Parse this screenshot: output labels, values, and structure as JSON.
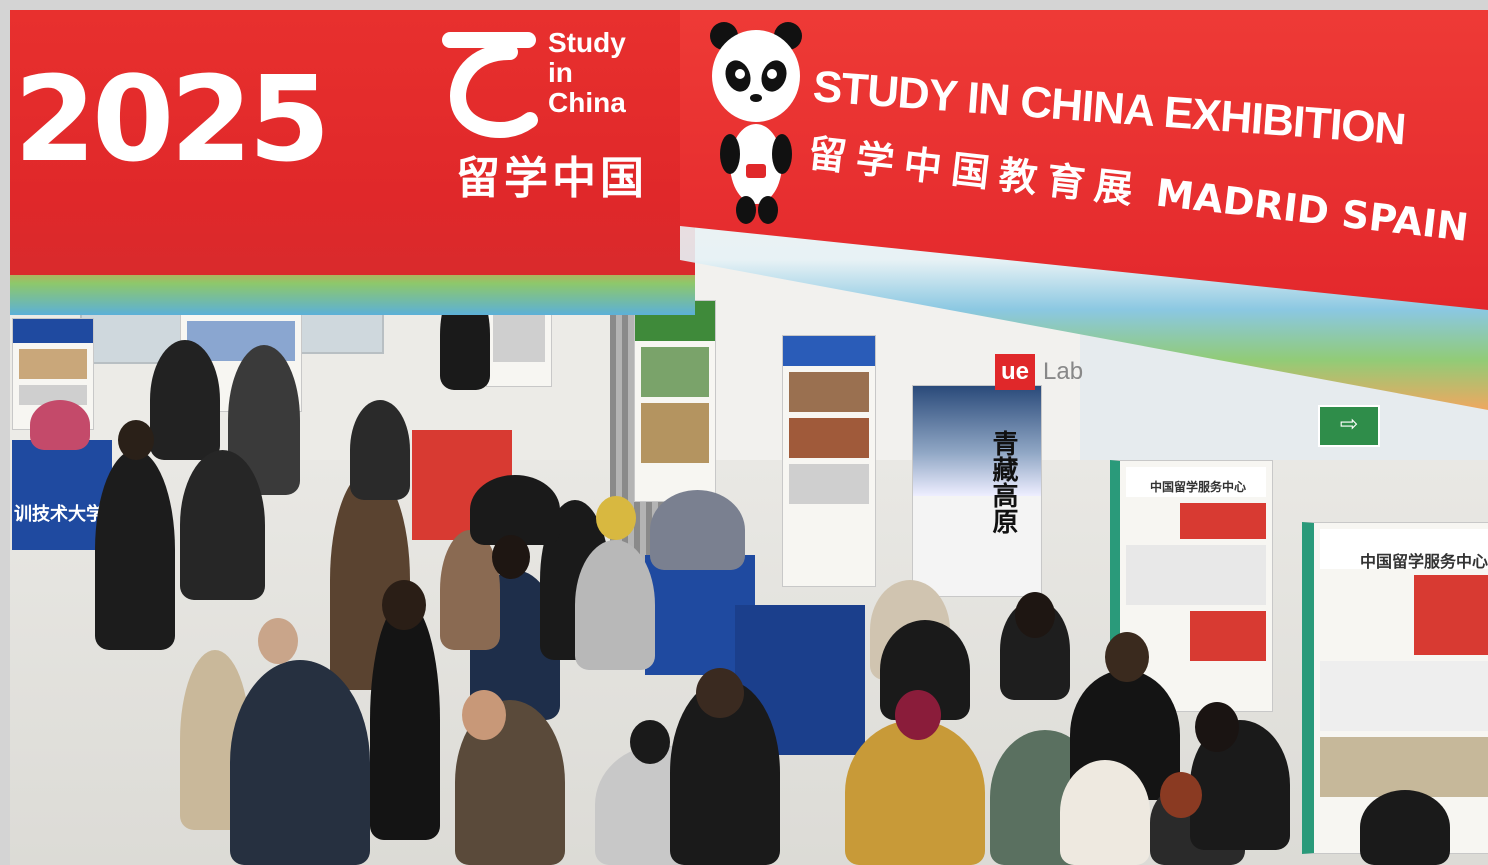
{
  "banner": {
    "year": "2025",
    "logo_line1": "Study",
    "logo_line2": "in",
    "logo_line3": "China",
    "logo_cn": "留学中国",
    "title": "STUDY IN CHINA EXHIBITION",
    "subtitle_cn": "留学中国教育展",
    "subtitle_location": "MADRID SPAIN"
  },
  "signage": {
    "lab_prefix": "ue",
    "lab_name": "Lab",
    "exit_symbol": "⇨"
  },
  "posters": {
    "poster_a_cn": "中国留学服务中心",
    "poster_b_cn": "中国留学服务中心",
    "poster_c_cn": "青藏高原"
  },
  "table_banner_text": "训技术大学",
  "colors": {
    "banner_red": "#e3282c",
    "table_blue": "#1f4aa0",
    "table_red": "#d83a32",
    "exit_green": "#2f8d4a"
  }
}
